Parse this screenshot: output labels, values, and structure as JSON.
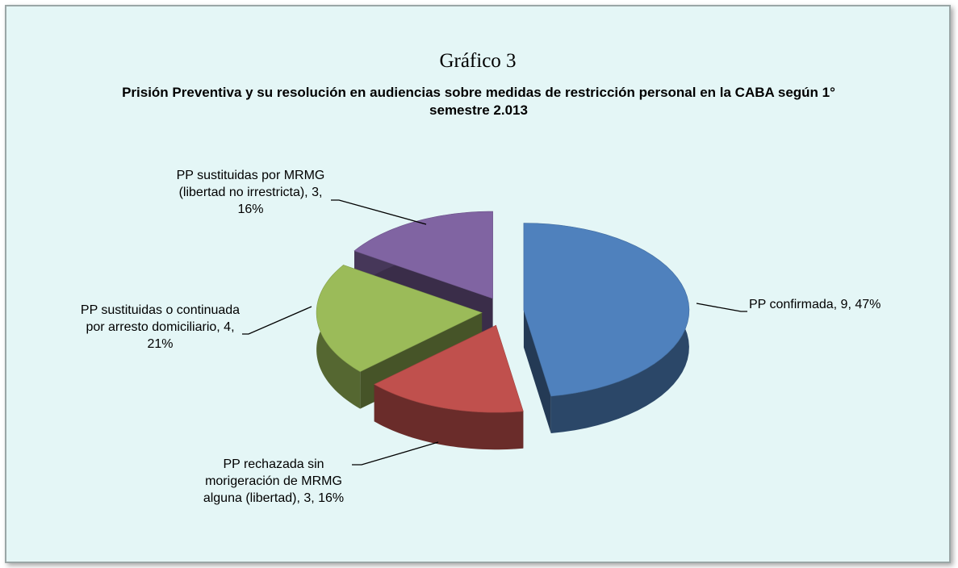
{
  "chart_data": {
    "type": "pie3d",
    "title": "Gráfico 3",
    "subtitle": "Prisión Preventiva y su resolución en audiencias sobre medidas de restricción personal en la CABA según 1° semestre 2.013",
    "values": [
      9,
      3,
      4,
      3
    ],
    "value_labels": [
      "PP confirmada, 9, 47%",
      "PP rechazada sin morigeración de MRMG alguna (libertad), 3, 16%",
      "PP sustituidas o continuada por arresto domiciliario, 4, 21%",
      "PP sustituidas por MRMG (libertad no irrestricta), 3, 16%"
    ],
    "colors": [
      "#4f81bd",
      "#c0504d",
      "#9bbb59",
      "#8064a2"
    ]
  }
}
